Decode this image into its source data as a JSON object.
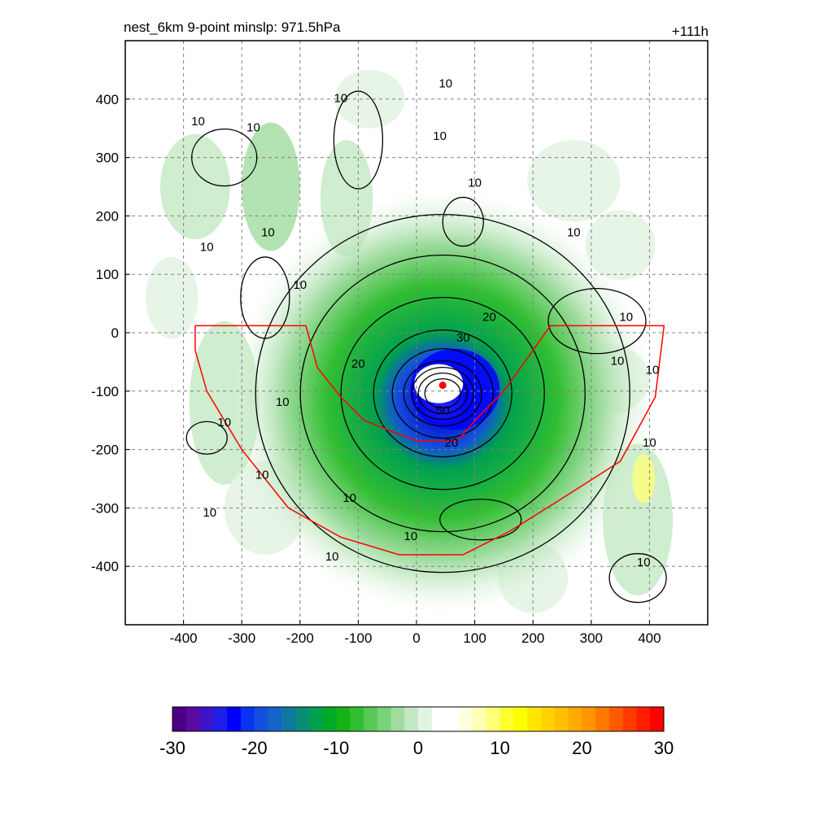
{
  "chart_data": {
    "type": "heatmap",
    "title_left": "nest_6km  9-point minslp: 971.5hPa",
    "title_right": "+111h",
    "xlim": [
      -500,
      500
    ],
    "ylim": [
      -500,
      500
    ],
    "x_ticks": [
      -400,
      -300,
      -200,
      -100,
      0,
      100,
      200,
      300,
      400
    ],
    "y_ticks": [
      400,
      300,
      200,
      100,
      0,
      -100,
      -200,
      -300,
      -400
    ],
    "grid": true,
    "center": [
      45,
      -90
    ],
    "center_marker_color": "#ff0000",
    "contour_color": "#000000",
    "boundary_color": "#ff0000",
    "contour_levels": [
      10,
      20,
      30,
      40,
      50
    ],
    "contour_labels": [
      {
        "text": "10",
        "x": -375,
        "y": 355
      },
      {
        "text": "10",
        "x": -280,
        "y": 345
      },
      {
        "text": "10",
        "x": -130,
        "y": 395
      },
      {
        "text": "10",
        "x": 50,
        "y": 420
      },
      {
        "text": "10",
        "x": 40,
        "y": 330
      },
      {
        "text": "10",
        "x": 100,
        "y": 250
      },
      {
        "text": "10",
        "x": -255,
        "y": 165
      },
      {
        "text": "10",
        "x": -360,
        "y": 140
      },
      {
        "text": "10",
        "x": -200,
        "y": 75
      },
      {
        "text": "10",
        "x": 270,
        "y": 165
      },
      {
        "text": "10",
        "x": 360,
        "y": 20
      },
      {
        "text": "10",
        "x": 345,
        "y": -55
      },
      {
        "text": "10",
        "x": 405,
        "y": -70
      },
      {
        "text": "10",
        "x": -230,
        "y": -125
      },
      {
        "text": "10",
        "x": -330,
        "y": -160
      },
      {
        "text": "10",
        "x": -265,
        "y": -250
      },
      {
        "text": "10",
        "x": -115,
        "y": -290
      },
      {
        "text": "10",
        "x": -355,
        "y": -315
      },
      {
        "text": "10",
        "x": -10,
        "y": -355
      },
      {
        "text": "10",
        "x": -145,
        "y": -390
      },
      {
        "text": "10",
        "x": 400,
        "y": -195
      },
      {
        "text": "10",
        "x": 390,
        "y": -400
      },
      {
        "text": "20",
        "x": 125,
        "y": 20
      },
      {
        "text": "20",
        "x": -100,
        "y": -60
      },
      {
        "text": "20",
        "x": 60,
        "y": -195
      },
      {
        "text": "30",
        "x": 80,
        "y": -15
      },
      {
        "text": "50",
        "x": 45,
        "y": -140
      }
    ],
    "colorbar": {
      "ticks": [
        -30,
        -20,
        -10,
        0,
        10,
        20,
        30
      ],
      "range": [
        -30,
        30
      ],
      "colors": [
        "#4b0082",
        "#5a0aa0",
        "#3c14c8",
        "#1e1ee6",
        "#0000ff",
        "#0a32f0",
        "#1450dc",
        "#1464c8",
        "#0f78a0",
        "#0a8c78",
        "#00a050",
        "#00aa28",
        "#14b414",
        "#32be32",
        "#55c855",
        "#78d278",
        "#a0dca0",
        "#c3e8c3",
        "#e1f3e1",
        "#ffffff",
        "#ffffff",
        "#ffffe1",
        "#ffffb4",
        "#ffff78",
        "#ffff32",
        "#ffff00",
        "#ffe600",
        "#ffd200",
        "#ffbe00",
        "#ffaa00",
        "#ff9600",
        "#ff7800",
        "#ff5a00",
        "#ff3c00",
        "#ff1e00",
        "#ff0000"
      ]
    }
  }
}
